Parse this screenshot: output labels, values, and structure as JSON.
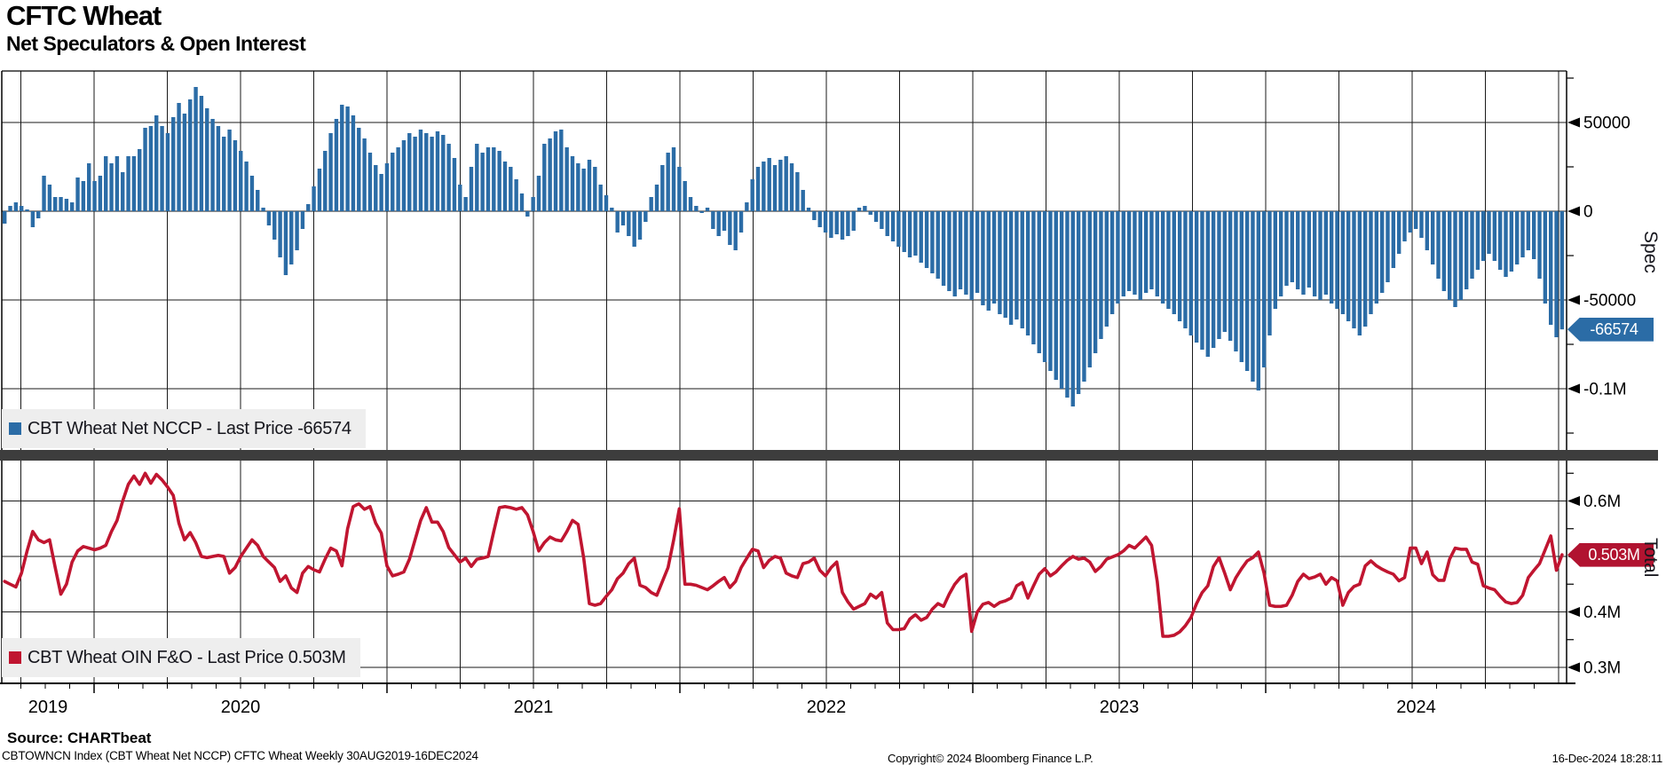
{
  "header": {
    "title": "CFTC Wheat",
    "subtitle": "Net Speculators & Open Interest"
  },
  "legends": {
    "spec": "CBT Wheat Net NCCP - Last Price -66574",
    "total": "CBT Wheat OIN F&O - Last Price 0.503M"
  },
  "badges": {
    "spec": "-66574",
    "total": "0.503M"
  },
  "axis_titles": {
    "spec": "Spec",
    "total": "Total"
  },
  "x_axis": {
    "year_labels": [
      "2019",
      "2020",
      "2021",
      "2022",
      "2023",
      "2024"
    ],
    "gridlines": "quarterly",
    "minor_ticks": "monthly"
  },
  "footer": {
    "source": "Source: CHARTbeat",
    "security": "CBTOWNCN Index (CBT Wheat Net NCCP) CFTC Wheat  Weekly 30AUG2019-16DEC2024",
    "copyright": "Copyright© 2024 Bloomberg Finance L.P.",
    "timestamp": "16-Dec-2024 18:28:11"
  },
  "colors": {
    "bar_blue": "#2b6ca6",
    "line_red": "#c01530",
    "badge_blue": "#2b6ca6",
    "badge_red": "#b11330",
    "legend_bg": "#eeeeee",
    "separator": "#3d3d3d",
    "grid": "#1a1a1a"
  },
  "chart_data": [
    {
      "type": "bar",
      "name": "CBT Wheat Net NCCP",
      "panel": "Spec",
      "frequency": "weekly",
      "range": "30AUG2019-16DEC2024",
      "last_price": -66574,
      "units": "net contracts, thousands",
      "ylim_k": [
        -135,
        79
      ],
      "yticks": [
        {
          "label": "50000",
          "value_k": 50
        },
        {
          "label": "0",
          "value_k": 0
        },
        {
          "label": "-50000",
          "value_k": -50
        },
        {
          "label": "-0.1M",
          "value_k": -100
        }
      ],
      "minor_ticks_k": [
        75,
        25,
        -25,
        -75,
        -125
      ],
      "values_k": [
        -7,
        3,
        5,
        3,
        1,
        -9,
        -4,
        20,
        15,
        8,
        8,
        7,
        5,
        19,
        17,
        27,
        17,
        20,
        31,
        27,
        31,
        22,
        31,
        31,
        35,
        47,
        48,
        54,
        48,
        44,
        53,
        61,
        55,
        63,
        70,
        65,
        58,
        52,
        48,
        42,
        46,
        40,
        34,
        28,
        20,
        12,
        2,
        -8,
        -16,
        -26,
        -36,
        -30,
        -22,
        -10,
        4,
        14,
        24,
        34,
        44,
        52,
        60,
        59,
        54,
        47,
        41,
        33,
        26,
        21,
        27,
        33,
        36,
        40,
        44,
        42,
        46,
        44,
        42,
        45,
        43,
        38,
        30,
        15,
        8,
        25,
        38,
        33,
        36,
        36,
        34,
        28,
        25,
        18,
        10,
        -3,
        8,
        20,
        38,
        41,
        45,
        46,
        36,
        31,
        27,
        24,
        29,
        25,
        15,
        9,
        2,
        -12,
        -8,
        -14,
        -20,
        -16,
        -6,
        8,
        15,
        26,
        33,
        36,
        25,
        17,
        8,
        3,
        -1,
        2,
        -10,
        -14,
        -11,
        -19,
        -22,
        -12,
        5,
        18,
        25,
        28,
        30,
        26,
        29,
        31,
        27,
        22,
        12,
        2,
        -5,
        -9,
        -12,
        -15,
        -13,
        -16,
        -14,
        -11,
        2,
        3,
        -2,
        -6,
        -10,
        -14,
        -17,
        -20,
        -23,
        -26,
        -25,
        -29,
        -32,
        -35,
        -38,
        -42,
        -45,
        -48,
        -44,
        -47,
        -50,
        -46,
        -53,
        -56,
        -52,
        -58,
        -60,
        -64,
        -61,
        -66,
        -70,
        -75,
        -80,
        -85,
        -90,
        -95,
        -100,
        -105,
        -110,
        -103,
        -96,
        -88,
        -80,
        -72,
        -65,
        -58,
        -52,
        -48,
        -45,
        -47,
        -50,
        -46,
        -44,
        -48,
        -52,
        -55,
        -58,
        -62,
        -66,
        -70,
        -74,
        -78,
        -82,
        -77,
        -72,
        -68,
        -73,
        -79,
        -85,
        -90,
        -96,
        -101,
        -88,
        -70,
        -55,
        -48,
        -42,
        -40,
        -44,
        -47,
        -43,
        -48,
        -50,
        -47,
        -52,
        -55,
        -58,
        -62,
        -66,
        -70,
        -65,
        -58,
        -52,
        -46,
        -40,
        -32,
        -24,
        -17,
        -12,
        -10,
        -15,
        -22,
        -30,
        -38,
        -45,
        -50,
        -54,
        -50,
        -44,
        -38,
        -33,
        -28,
        -24,
        -28,
        -33,
        -37,
        -34,
        -30,
        -26,
        -22,
        -27,
        -38,
        -52,
        -64,
        -71,
        -66.574
      ]
    },
    {
      "type": "line",
      "name": "CBT Wheat OIN F&O",
      "panel": "Total",
      "frequency": "weekly",
      "range": "30AUG2019-16DEC2024",
      "last_price_m": 0.503,
      "units": "contracts, millions",
      "ylim_m": [
        0.271,
        0.673
      ],
      "yticks": [
        {
          "label": "0.6M",
          "value_m": 0.6
        },
        {
          "label": "0.5M",
          "value_m": 0.5
        },
        {
          "label": "0.4M",
          "value_m": 0.4
        },
        {
          "label": "0.3M",
          "value_m": 0.3
        }
      ],
      "minor_ticks_m": [
        0.65,
        0.55,
        0.45,
        0.35
      ],
      "values_m": [
        0.455,
        0.45,
        0.445,
        0.47,
        0.51,
        0.545,
        0.53,
        0.525,
        0.53,
        0.48,
        0.432,
        0.45,
        0.49,
        0.51,
        0.518,
        0.515,
        0.512,
        0.515,
        0.52,
        0.545,
        0.565,
        0.6,
        0.63,
        0.645,
        0.63,
        0.65,
        0.632,
        0.648,
        0.638,
        0.625,
        0.61,
        0.56,
        0.53,
        0.543,
        0.525,
        0.5,
        0.498,
        0.5,
        0.502,
        0.5,
        0.47,
        0.48,
        0.5,
        0.515,
        0.53,
        0.52,
        0.5,
        0.49,
        0.48,
        0.455,
        0.465,
        0.443,
        0.435,
        0.47,
        0.482,
        0.476,
        0.472,
        0.495,
        0.515,
        0.51,
        0.483,
        0.55,
        0.59,
        0.595,
        0.585,
        0.59,
        0.56,
        0.542,
        0.483,
        0.465,
        0.468,
        0.472,
        0.495,
        0.53,
        0.565,
        0.588,
        0.562,
        0.562,
        0.545,
        0.516,
        0.503,
        0.49,
        0.497,
        0.482,
        0.495,
        0.497,
        0.5,
        0.545,
        0.588,
        0.59,
        0.588,
        0.585,
        0.588,
        0.575,
        0.545,
        0.51,
        0.525,
        0.535,
        0.53,
        0.528,
        0.545,
        0.565,
        0.558,
        0.497,
        0.415,
        0.412,
        0.415,
        0.428,
        0.44,
        0.46,
        0.47,
        0.487,
        0.497,
        0.448,
        0.444,
        0.435,
        0.43,
        0.455,
        0.48,
        0.53,
        0.586,
        0.45,
        0.45,
        0.448,
        0.444,
        0.44,
        0.447,
        0.455,
        0.462,
        0.444,
        0.455,
        0.48,
        0.497,
        0.513,
        0.51,
        0.48,
        0.493,
        0.5,
        0.497,
        0.47,
        0.465,
        0.462,
        0.487,
        0.49,
        0.497,
        0.475,
        0.465,
        0.48,
        0.49,
        0.435,
        0.418,
        0.405,
        0.41,
        0.415,
        0.432,
        0.425,
        0.435,
        0.38,
        0.368,
        0.368,
        0.37,
        0.387,
        0.395,
        0.385,
        0.39,
        0.405,
        0.415,
        0.41,
        0.432,
        0.45,
        0.462,
        0.468,
        0.365,
        0.4,
        0.414,
        0.417,
        0.41,
        0.417,
        0.42,
        0.425,
        0.447,
        0.453,
        0.425,
        0.447,
        0.468,
        0.478,
        0.465,
        0.472,
        0.483,
        0.493,
        0.5,
        0.495,
        0.497,
        0.49,
        0.473,
        0.482,
        0.495,
        0.499,
        0.503,
        0.51,
        0.52,
        0.515,
        0.525,
        0.535,
        0.52,
        0.455,
        0.356,
        0.356,
        0.358,
        0.364,
        0.375,
        0.39,
        0.415,
        0.435,
        0.447,
        0.482,
        0.498,
        0.47,
        0.44,
        0.462,
        0.478,
        0.492,
        0.498,
        0.508,
        0.47,
        0.412,
        0.41,
        0.41,
        0.412,
        0.43,
        0.455,
        0.468,
        0.46,
        0.463,
        0.468,
        0.45,
        0.462,
        0.456,
        0.412,
        0.435,
        0.446,
        0.45,
        0.483,
        0.492,
        0.483,
        0.477,
        0.472,
        0.468,
        0.456,
        0.462,
        0.515,
        0.515,
        0.487,
        0.508,
        0.467,
        0.457,
        0.457,
        0.495,
        0.515,
        0.513,
        0.513,
        0.49,
        0.486,
        0.447,
        0.443,
        0.44,
        0.428,
        0.418,
        0.415,
        0.417,
        0.43,
        0.462,
        0.475,
        0.487,
        0.512,
        0.537,
        0.475,
        0.503
      ]
    }
  ]
}
